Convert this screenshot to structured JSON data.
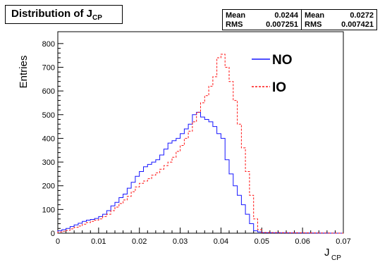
{
  "chart_data": {
    "type": "histogram",
    "title_main": "Distribution of J",
    "title_sub": "CP",
    "xlabel_main": "J",
    "xlabel_sub": "CP",
    "ylabel": "Entries",
    "xlim": [
      0,
      0.07
    ],
    "ylim": [
      0,
      850
    ],
    "x_ticks": [
      0,
      0.01,
      0.02,
      0.03,
      0.04,
      0.05,
      0.06,
      0.07
    ],
    "x_tick_labels": [
      "0",
      "0.01",
      "0.02",
      "0.03",
      "0.04",
      "0.05",
      "0.06",
      "0.07"
    ],
    "y_ticks": [
      0,
      100,
      200,
      300,
      400,
      500,
      600,
      700,
      800
    ],
    "y_tick_labels": [
      "0",
      "100",
      "200",
      "300",
      "400",
      "500",
      "600",
      "700",
      "800"
    ],
    "bin_width": 0.001,
    "series": [
      {
        "name": "NO",
        "color": "#1515ff",
        "style": "solid",
        "stats": {
          "mean_label": "Mean",
          "mean": "0.0244",
          "rms_label": "RMS",
          "rms": "0.007251"
        },
        "values": [
          10,
          15,
          20,
          28,
          35,
          42,
          50,
          55,
          58,
          62,
          70,
          80,
          95,
          115,
          130,
          150,
          165,
          190,
          215,
          240,
          260,
          280,
          290,
          300,
          310,
          330,
          355,
          380,
          390,
          400,
          420,
          440,
          460,
          500,
          510,
          490,
          480,
          470,
          450,
          420,
          400,
          310,
          250,
          200,
          160,
          120,
          80,
          40,
          10,
          5,
          2
        ]
      },
      {
        "name": "IO",
        "color": "#ff1515",
        "style": "dashed",
        "stats": {
          "mean_label": "Mean",
          "mean": "0.0272",
          "rms_label": "RMS",
          "rms": "0.007421"
        },
        "values": [
          5,
          8,
          12,
          18,
          25,
          30,
          38,
          45,
          50,
          55,
          60,
          70,
          80,
          95,
          110,
          125,
          140,
          155,
          175,
          195,
          210,
          220,
          230,
          245,
          255,
          270,
          285,
          300,
          320,
          345,
          370,
          400,
          430,
          470,
          510,
          550,
          580,
          620,
          660,
          740,
          755,
          700,
          640,
          560,
          460,
          360,
          260,
          160,
          60,
          15,
          3
        ]
      }
    ],
    "legend": [
      {
        "label": "NO",
        "color": "#1515ff",
        "style": "solid"
      },
      {
        "label": "IO",
        "color": "#ff1515",
        "style": "dashed"
      }
    ]
  }
}
